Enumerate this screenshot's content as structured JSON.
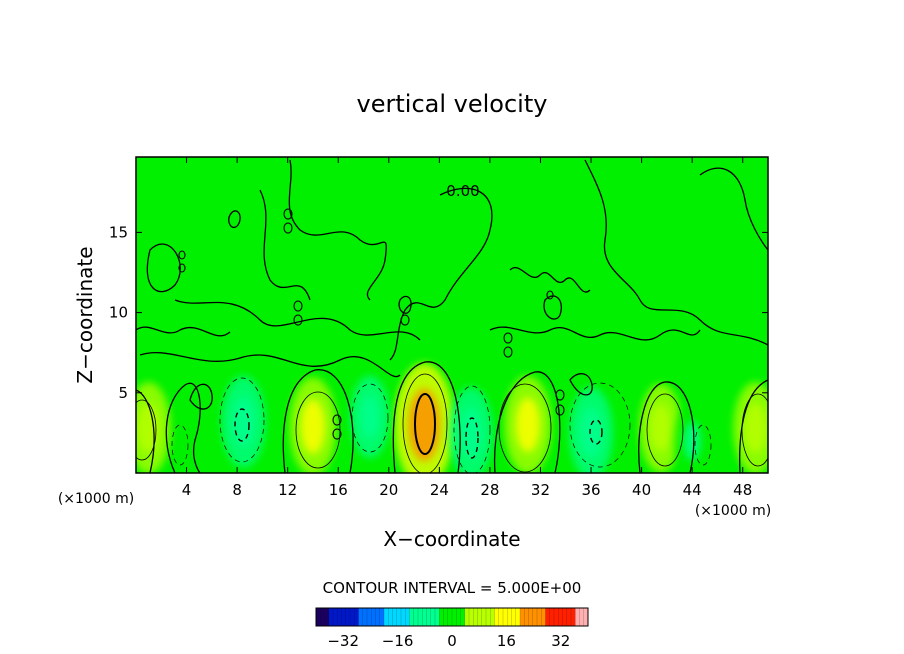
{
  "chart_data": {
    "type": "heatmap",
    "title": "vertical velocity",
    "xlabel": "X−coordinate",
    "ylabel": "Z−coordinate",
    "x_unit": "(×1000 m)",
    "y_unit": "(×1000 m)",
    "xlim": [
      0,
      50
    ],
    "ylim": [
      0,
      19.7
    ],
    "x_ticks": [
      4,
      8,
      12,
      16,
      20,
      24,
      28,
      32,
      36,
      40,
      44,
      48
    ],
    "y_ticks": [
      5,
      10,
      15
    ],
    "contour_interval_text": "CONTOUR INTERVAL = 5.000E+00",
    "contour_labels": [
      "0.00"
    ],
    "colorbar": {
      "range": [
        -40,
        40
      ],
      "ticks": [
        -32,
        -16,
        0,
        16,
        32
      ],
      "tick_labels": [
        "−32",
        "−16",
        "0",
        "16",
        "32"
      ]
    },
    "updraft_cells": [
      {
        "x": 1,
        "z": 2.8,
        "w": 10
      },
      {
        "x": 14,
        "z": 2.9,
        "w": 12
      },
      {
        "x": 22.8,
        "z": 3.0,
        "w": 20
      },
      {
        "x": 31,
        "z": 3.0,
        "w": 12
      },
      {
        "x": 41.5,
        "z": 2.8,
        "w": 9
      },
      {
        "x": 49,
        "z": 2.8,
        "w": 10
      }
    ],
    "downdraft_cells": [
      {
        "x": 8.5,
        "z": 3.2,
        "w": -10
      },
      {
        "x": 18.5,
        "z": 3.5,
        "w": -7
      },
      {
        "x": 26.5,
        "z": 2.5,
        "w": -10
      },
      {
        "x": 36,
        "z": 2.5,
        "w": -10
      },
      {
        "x": 44,
        "z": 2.0,
        "w": -5
      }
    ],
    "colors": {
      "background_field": "#00f000",
      "colormap": [
        "#1b0060",
        "#0018c8",
        "#0070ff",
        "#00d8ff",
        "#00ff90",
        "#00f000",
        "#b8ff00",
        "#ffff00",
        "#ff9000",
        "#ff2000",
        "#ffb0b0"
      ]
    }
  }
}
